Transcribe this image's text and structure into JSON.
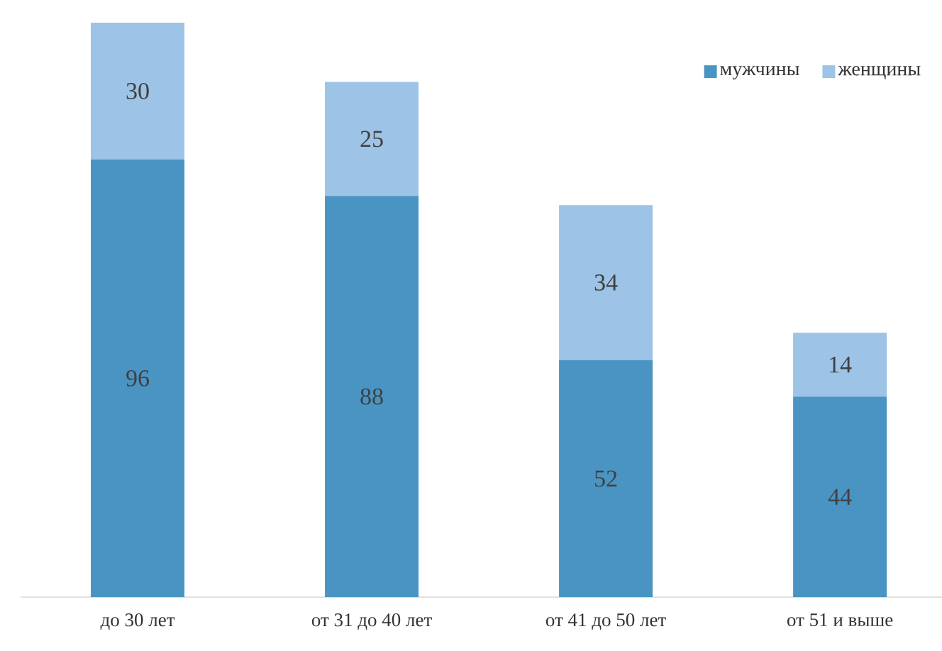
{
  "chart_data": {
    "type": "bar",
    "stacked": true,
    "data_labels": true,
    "legend": "top right",
    "categories": [
      "до 30 лет",
      "от 31 до 40 лет",
      "от 41 до 50 лет",
      "от 51 и выше"
    ],
    "series": [
      {
        "name": "мужчины",
        "color": "#4a94c4",
        "values": [
          96,
          88,
          52,
          44
        ]
      },
      {
        "name": "женщины",
        "color": "#9dc3e6",
        "values": [
          30,
          25,
          34,
          14
        ]
      }
    ]
  }
}
